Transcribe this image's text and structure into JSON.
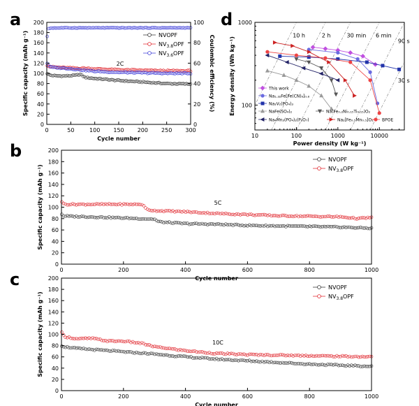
{
  "panels": {
    "a": "a",
    "b": "b",
    "c": "c",
    "d": "d"
  },
  "chart_data": [
    {
      "id": "a",
      "type": "scatter",
      "xlabel": "Cycle number",
      "ylabel": "Specific capacity (mAh g⁻¹)",
      "y2label": "Coulombic efficiency (%)",
      "xlim": [
        0,
        300
      ],
      "ylim": [
        0,
        200
      ],
      "y2lim": [
        0,
        100
      ],
      "xticks": [
        0,
        50,
        100,
        150,
        200,
        250,
        300
      ],
      "yticks": [
        0,
        20,
        40,
        60,
        80,
        100,
        120,
        140,
        160,
        180,
        200
      ],
      "y2ticks": [
        0,
        20,
        40,
        60,
        80,
        100
      ],
      "annotation": "2C",
      "legend_position": "top-right",
      "series": [
        {
          "name": "NVOPF",
          "color": "#333333",
          "x": [
            1,
            5,
            10,
            20,
            40,
            60,
            70,
            80,
            100,
            150,
            200,
            250,
            300
          ],
          "y": [
            100,
            97,
            96,
            95,
            95,
            96,
            98,
            92,
            90,
            86,
            83,
            80,
            79
          ]
        },
        {
          "name": "NV3.8OPF",
          "color": "#e0242b",
          "x": [
            1,
            5,
            10,
            20,
            40,
            60,
            80,
            100,
            150,
            200,
            250,
            300
          ],
          "y": [
            116,
            114,
            113,
            112,
            111,
            110,
            110,
            109,
            107,
            106,
            105,
            105
          ]
        },
        {
          "name": "NV3.6OPF",
          "color": "#3b3bd8",
          "x": [
            1,
            5,
            10,
            20,
            40,
            60,
            80,
            100,
            150,
            200,
            250,
            300
          ],
          "y": [
            120,
            114,
            112,
            111,
            110,
            108,
            106,
            104,
            102,
            101,
            100,
            100
          ]
        }
      ],
      "efficiency": {
        "x": [
          1,
          2,
          3,
          5,
          10,
          50,
          100,
          150,
          200,
          250,
          300
        ],
        "y": [
          86,
          92,
          94,
          94,
          94.5,
          94.6,
          94.6,
          94.6,
          94.6,
          94.6,
          94.6
        ],
        "color": "#3b3bd8"
      }
    },
    {
      "id": "b",
      "type": "scatter",
      "xlabel": "Cycle number",
      "ylabel": "Specific capacity (mAh g⁻¹)",
      "xlim": [
        0,
        1000
      ],
      "ylim": [
        0,
        200
      ],
      "xticks": [
        0,
        200,
        400,
        600,
        800,
        1000
      ],
      "yticks": [
        0,
        20,
        40,
        60,
        80,
        100,
        120,
        140,
        160,
        180,
        200
      ],
      "annotation": "5C",
      "legend_position": "top-right",
      "series": [
        {
          "name": "NVOPF",
          "color": "#333333",
          "x": [
            1,
            5,
            20,
            100,
            200,
            300,
            310,
            320,
            400,
            500,
            600,
            700,
            800,
            900,
            1000
          ],
          "y": [
            88,
            85,
            84,
            83,
            81,
            79,
            75,
            74,
            71,
            70,
            68,
            67,
            66,
            65,
            63
          ]
        },
        {
          "name": "NV3.8OPF",
          "color": "#e0242b",
          "x": [
            1,
            5,
            20,
            100,
            200,
            260,
            275,
            300,
            400,
            500,
            600,
            700,
            800,
            900,
            960,
            1000
          ],
          "y": [
            110,
            106,
            105,
            105,
            105,
            105,
            96,
            94,
            92,
            89,
            87,
            85,
            84,
            83,
            80,
            82
          ]
        }
      ]
    },
    {
      "id": "c",
      "type": "scatter",
      "xlabel": "Cycle number",
      "ylabel": "Specific capacity (mAh g⁻¹)",
      "xlim": [
        0,
        1000
      ],
      "ylim": [
        0,
        200
      ],
      "xticks": [
        0,
        200,
        400,
        600,
        800,
        1000
      ],
      "yticks": [
        0,
        20,
        40,
        60,
        80,
        100,
        120,
        140,
        160,
        180,
        200
      ],
      "annotation": "10C",
      "legend_position": "top-right",
      "series": [
        {
          "name": "NVOPF",
          "color": "#333333",
          "x": [
            1,
            10,
            50,
            100,
            200,
            300,
            400,
            500,
            600,
            700,
            800,
            900,
            1000
          ],
          "y": [
            80,
            78,
            75,
            73,
            69,
            65,
            60,
            56,
            53,
            50,
            47,
            45,
            43
          ]
        },
        {
          "name": "NV3.8OPF",
          "color": "#e0242b",
          "x": [
            1,
            10,
            50,
            100,
            150,
            200,
            260,
            300,
            400,
            500,
            600,
            700,
            800,
            900,
            1000
          ],
          "y": [
            103,
            96,
            92,
            93,
            88,
            88,
            84,
            78,
            71,
            66,
            64,
            63,
            62,
            61,
            60
          ]
        }
      ]
    },
    {
      "id": "d",
      "type": "line",
      "xlabel": "Power density (W kg⁻¹)",
      "ylabel": "Energy density (Wh kg⁻¹)",
      "xscale": "log",
      "yscale": "log",
      "xlim": [
        10,
        40000
      ],
      "ylim": [
        50,
        1000
      ],
      "xticks": [
        10,
        100,
        1000,
        10000
      ],
      "xticklabels": [
        "10",
        "100",
        "1000",
        "10000"
      ],
      "yticks": [
        100,
        1000
      ],
      "yticklabels": [
        "100",
        "1000"
      ],
      "time_lines": [
        {
          "label": "10 h",
          "hours": 10
        },
        {
          "label": "2 h",
          "hours": 2
        },
        {
          "label": "30 min",
          "hours": 0.5
        },
        {
          "label": "6 min",
          "hours": 0.1
        },
        {
          "label": "90 s",
          "hours": 0.025
        },
        {
          "label": "30 s",
          "hours": 0.00833
        }
      ],
      "series": [
        {
          "name": "This work",
          "color": "#c050e0",
          "marker": "diamond",
          "x": [
            250,
            500,
            1000,
            2000,
            4000,
            8000
          ],
          "y": [
            500,
            480,
            460,
            430,
            390,
            310
          ]
        },
        {
          "name": "Na₁.₃₂Fe[Fe(CN)₆]₀.₈",
          "color": "#6a6ae0",
          "marker": "circle",
          "x": [
            200,
            1000,
            3000,
            6000,
            9000
          ],
          "y": [
            470,
            430,
            360,
            250,
            105
          ]
        },
        {
          "name": "Na₃V₂(PO₄)₃",
          "color": "#2233aa",
          "marker": "square",
          "x": [
            40,
            200,
            1000,
            5000,
            12000,
            30000
          ],
          "y": [
            390,
            380,
            360,
            330,
            300,
            270
          ]
        },
        {
          "name": "NaFe(SO₄)₂",
          "color": "#999999",
          "marker": "triangle",
          "x": [
            20,
            50,
            100,
            200,
            400,
            700
          ],
          "y": [
            260,
            230,
            200,
            170,
            130,
            90
          ]
        },
        {
          "name": "Na(Fe₀.₂Ni₀.₁₅Ti₀.₁₅)O₂",
          "color": "#555555",
          "marker": "triangle-down",
          "x": [
            100,
            200,
            400,
            700,
            900
          ],
          "y": [
            360,
            330,
            280,
            200,
            135
          ]
        },
        {
          "name": "Na₄Mn₃(PO₄)₂(P₂O₇)",
          "color": "#222266",
          "marker": "triangle-left",
          "x": [
            20,
            60,
            150,
            400,
            1000
          ],
          "y": [
            400,
            330,
            280,
            240,
            200
          ]
        },
        {
          "name": "Na₂[Fe₀.₅Mn₀.₅]O₂",
          "color": "#cc2222",
          "marker": "triangle-right",
          "x": [
            30,
            80,
            200,
            600,
            1500,
            2500
          ],
          "y": [
            570,
            520,
            440,
            330,
            200,
            130
          ]
        },
        {
          "name": "BPOE",
          "color": "#ee4444",
          "marker": "circle",
          "x": [
            20,
            100,
            500,
            2000,
            6000,
            10000
          ],
          "y": [
            440,
            400,
            370,
            330,
            200,
            80
          ]
        }
      ]
    }
  ]
}
